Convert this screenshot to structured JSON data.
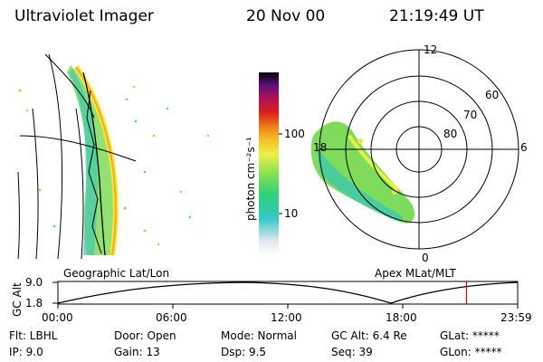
{
  "header": {
    "instrument": "Ultraviolet Imager",
    "date": "20 Nov 00",
    "time": "21:19:49 UT"
  },
  "colorbar": {
    "unit_label": "photon cm⁻²s⁻¹",
    "ticks": [
      "100",
      "10"
    ],
    "scale": "log"
  },
  "polar_plot": {
    "mlat_labels": [
      "60",
      "70",
      "80"
    ],
    "mlt_labels": [
      "12",
      "18",
      "6",
      "0"
    ]
  },
  "panel_labels": {
    "left": "Geographic Lat/Lon",
    "right": "Apex MLat/MLT"
  },
  "altitude_plot": {
    "axis_label": "GC Alt",
    "y_ticks": [
      "9.0",
      "1.8"
    ],
    "x_ticks": [
      "00:00",
      "06:00",
      "12:00",
      "18:00",
      "23:59"
    ],
    "current_time_marker_hours": 21.33,
    "marker_color": "#cc0000"
  },
  "status": {
    "filter": "Flt: LBHL",
    "door": "Door: Open",
    "mode": "Mode: Normal",
    "gc_alt": "GC Alt: 6.4 Re",
    "glat": "GLat: *****",
    "ip": "IP:  9.0",
    "gain": "Gain: 13",
    "dsp": "Dsp:    9.5",
    "seq": "Seq: 39",
    "glon": "GLon: *****"
  }
}
